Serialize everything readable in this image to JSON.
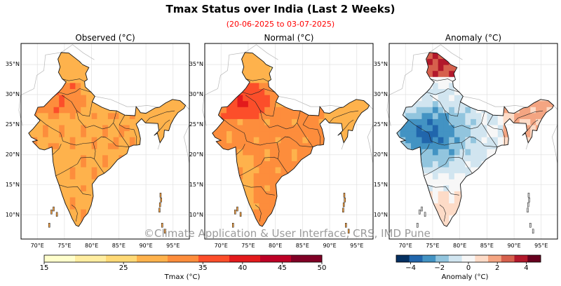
{
  "header": {
    "title": "Tmax Status over India (Last 2 Weeks)",
    "subtitle": "(20-06-2025 to 03-07-2025)"
  },
  "panels": [
    {
      "title": "Observed (°C)",
      "colormap": "tmax"
    },
    {
      "title": "Normal (°C)",
      "colormap": "tmax"
    },
    {
      "title": "Anomaly (°C)",
      "colormap": "anomaly"
    }
  ],
  "axes": {
    "lat_ticks": [
      "35°N",
      "30°N",
      "25°N",
      "20°N",
      "15°N",
      "10°N"
    ],
    "lon_ticks": [
      "70°E",
      "75°E",
      "80°E",
      "85°E",
      "90°E",
      "95°E"
    ]
  },
  "watermark": "©Climate Application & User Interface, CRS, IMD Pune",
  "colorbars": {
    "tmax": {
      "label": "Tmax (°C)",
      "ticks": [
        "15",
        "25",
        "35",
        "40",
        "45",
        "50"
      ],
      "colors": [
        "#ffffcc",
        "#ffeda0",
        "#fed976",
        "#feb24c",
        "#fd8d3c",
        "#fc4e2a",
        "#e31a1c",
        "#bd0026",
        "#800026"
      ]
    },
    "anomaly": {
      "label": "Anomaly (°C)",
      "ticks": [
        "−4",
        "−2",
        "0",
        "2",
        "4"
      ],
      "colors": [
        "#053061",
        "#2166ac",
        "#4393c3",
        "#92c5de",
        "#d1e5f0",
        "#f7f7f7",
        "#fddbc7",
        "#f4a582",
        "#d6604d",
        "#b2182b",
        "#67001f"
      ]
    }
  }
}
